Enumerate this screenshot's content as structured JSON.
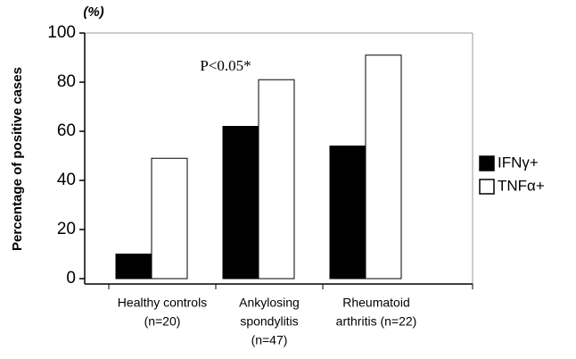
{
  "chart_data": {
    "type": "bar",
    "y_unit": "(%)",
    "y_label": "Percentage of positive cases",
    "annotation": "P<0.05*",
    "categories": [
      [
        "Healthy controls",
        "(n=20)"
      ],
      [
        "Ankylosing",
        "spondylitis",
        "(n=47)"
      ],
      [
        "Rheumatoid",
        "arthritis (n=22)"
      ]
    ],
    "series": [
      {
        "name": "IFNγ+",
        "color": "#000000",
        "values": [
          10,
          62,
          54
        ]
      },
      {
        "name": "TNFα+",
        "color": "#ffffff",
        "values": [
          49,
          81,
          91
        ]
      }
    ],
    "ylim": [
      0,
      100
    ],
    "yticks": [
      0,
      20,
      40,
      60,
      80,
      100
    ],
    "grid": false,
    "legend": "right"
  }
}
